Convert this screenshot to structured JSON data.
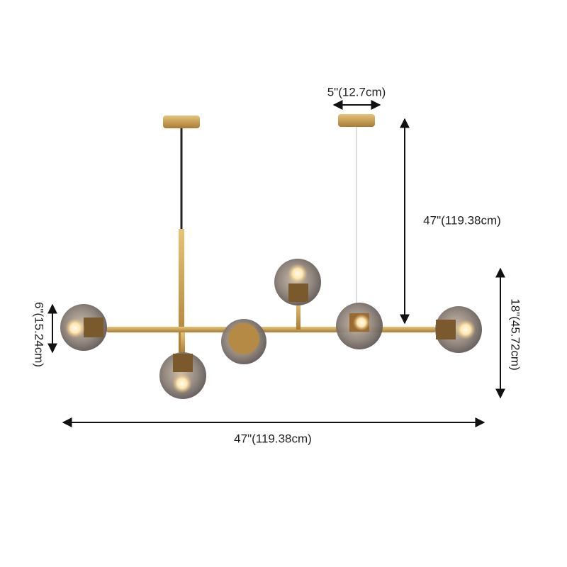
{
  "dimensions": {
    "canopy_width": "5\"(12.7cm)",
    "drop_length": "47\"(119.38cm)",
    "height": "18\"(45.72cm)",
    "globe_height": "6\"(15.24cm)",
    "overall_width": "47\"(119.38cm)"
  }
}
